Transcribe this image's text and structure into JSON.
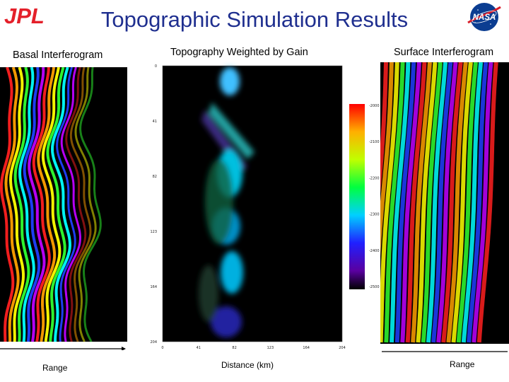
{
  "slide": {
    "title": "Topographic Simulation Results",
    "logo_left_text": "JPL",
    "logo_right_text": "NASA"
  },
  "panels": {
    "left": {
      "title": "Basal Interferogram",
      "xlabel": "Range"
    },
    "center": {
      "title": "Topography Weighted by Gain",
      "xlabel": "Distance (km)"
    },
    "right": {
      "title": "Surface Interferogram",
      "xlabel": "Range"
    }
  },
  "colors": {
    "title": "#1f2f8f",
    "jpl_red": "#e4202a",
    "nasa_blue": "#0b3d91"
  },
  "chart_data": {
    "type": "heatmap",
    "title": "Topography Weighted by Gain",
    "xlabel": "Distance (km)",
    "ylabel": "",
    "x_ticks": [
      "0",
      "41",
      "82",
      "123",
      "164",
      "204"
    ],
    "y_ticks": [
      "0",
      "41",
      "82",
      "123",
      "164",
      "204"
    ],
    "colorbar_ticks": [
      "-2000",
      "-2100",
      "-2200",
      "-2300",
      "-2400",
      "-2500"
    ]
  }
}
